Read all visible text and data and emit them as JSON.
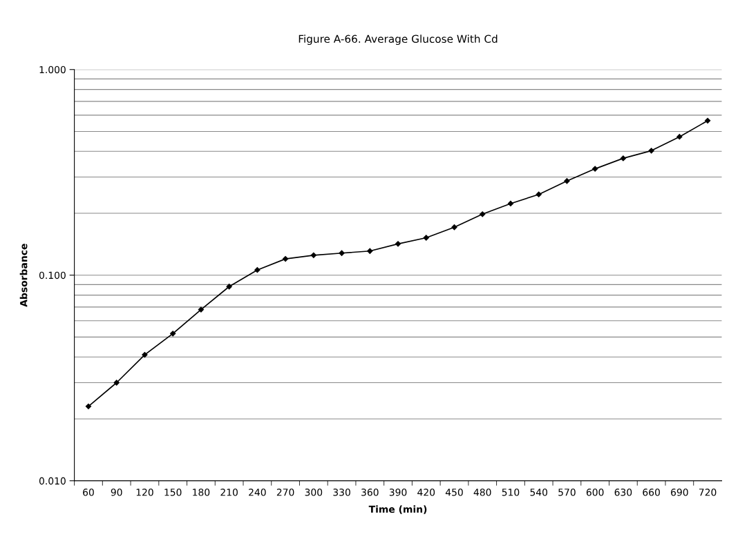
{
  "chart_data": {
    "type": "line",
    "title": "Figure A-66. Average Glucose With Cd",
    "xlabel": "Time (min)",
    "ylabel": "Absorbance",
    "categories": [
      "60",
      "90",
      "120",
      "150",
      "180",
      "210",
      "240",
      "270",
      "300",
      "330",
      "360",
      "390",
      "420",
      "450",
      "480",
      "510",
      "540",
      "570",
      "600",
      "630",
      "660",
      "690",
      "720"
    ],
    "series": [
      {
        "color": "#000000",
        "values": [
          0.023,
          0.03,
          0.041,
          0.052,
          0.068,
          0.088,
          0.106,
          0.12,
          0.125,
          0.128,
          0.131,
          0.142,
          0.152,
          0.171,
          0.198,
          0.223,
          0.247,
          0.287,
          0.329,
          0.37,
          0.403,
          0.471,
          0.564
        ]
      }
    ],
    "log": "y",
    "ylim": [
      0.01,
      1
    ],
    "yticks": [
      {
        "value": 0.01,
        "label": "0.010"
      },
      {
        "value": 0.1,
        "label": "0.100"
      },
      {
        "value": 1,
        "label": "1.000"
      }
    ],
    "grid": "y",
    "marker": "diamond",
    "line_style": "solid",
    "legend": false
  }
}
